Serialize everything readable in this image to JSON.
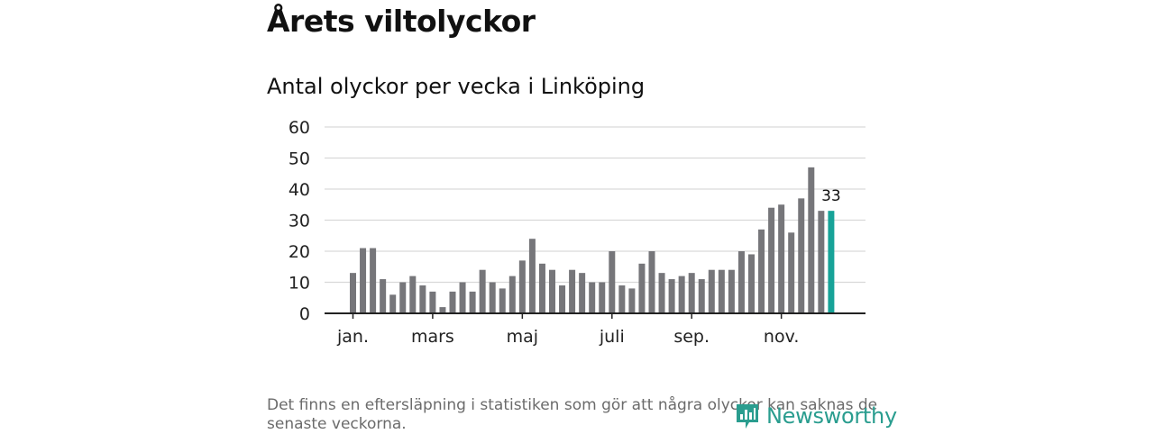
{
  "page": {
    "title": "Årets viltolyckor",
    "subtitle": "Antal olyckor per vecka i Linköping",
    "footnote": "Det finns en eftersläpning i statistiken som gör att några olyckor kan saknas de senaste veckorna.",
    "brand": "Newsworthy"
  },
  "colors": {
    "bar": "#76767a",
    "highlight": "#17a398",
    "grid": "#d9d9d9",
    "axis": "#222222",
    "brand": "#2a9d8f"
  },
  "chart_data": {
    "type": "bar",
    "title": "Antal olyckor per vecka i Linköping",
    "xlabel": "",
    "ylabel": "",
    "ylim": [
      0,
      60
    ],
    "yticks": [
      0,
      10,
      20,
      30,
      40,
      50,
      60
    ],
    "month_labels": [
      {
        "label": "jan.",
        "week": 1
      },
      {
        "label": "mars",
        "week": 9
      },
      {
        "label": "maj",
        "week": 18
      },
      {
        "label": "juli",
        "week": 27
      },
      {
        "label": "sep.",
        "week": 35
      },
      {
        "label": "nov.",
        "week": 44
      }
    ],
    "weeks": [
      1,
      2,
      3,
      4,
      5,
      6,
      7,
      8,
      9,
      10,
      11,
      12,
      13,
      14,
      15,
      16,
      17,
      18,
      19,
      20,
      21,
      22,
      23,
      24,
      25,
      26,
      27,
      28,
      29,
      30,
      31,
      32,
      33,
      34,
      35,
      36,
      37,
      38,
      39,
      40,
      41,
      42,
      43,
      44,
      45,
      46,
      47,
      48,
      49
    ],
    "values": [
      13,
      21,
      21,
      11,
      6,
      10,
      12,
      9,
      7,
      2,
      7,
      10,
      7,
      14,
      10,
      8,
      12,
      17,
      24,
      16,
      14,
      9,
      14,
      13,
      10,
      10,
      20,
      9,
      8,
      16,
      20,
      13,
      11,
      12,
      13,
      11,
      14,
      14,
      14,
      20,
      19,
      27,
      34,
      35,
      26,
      37,
      47,
      33,
      33
    ],
    "highlight_week": 49,
    "highlight_label": "33"
  }
}
